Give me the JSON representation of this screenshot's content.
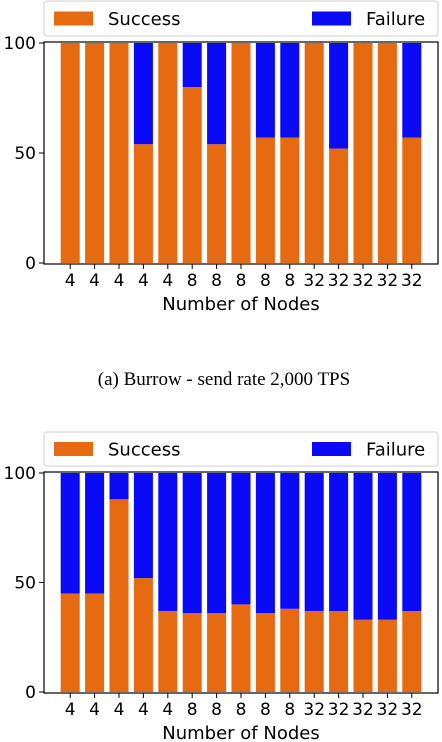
{
  "colors": {
    "success": "#E66A11",
    "failure": "#0A0AF5"
  },
  "legend": {
    "success_label": "Success",
    "failure_label": "Failure"
  },
  "chart_data": [
    {
      "type": "bar",
      "stacked": true,
      "xlabel": "Number of Nodes",
      "ylabel": "",
      "caption": "(a) Burrow - send rate 2,000 TPS",
      "ylim": [
        0,
        100
      ],
      "yticks": [
        0,
        50,
        100
      ],
      "categories": [
        "4",
        "4",
        "4",
        "4",
        "4",
        "8",
        "8",
        "8",
        "8",
        "8",
        "32",
        "32",
        "32",
        "32",
        "32"
      ],
      "series": [
        {
          "name": "Success",
          "values": [
            100,
            100,
            100,
            54,
            100,
            80,
            54,
            100,
            57,
            57,
            100,
            52,
            100,
            100,
            57
          ]
        },
        {
          "name": "Failure",
          "values": [
            0,
            0,
            0,
            46,
            0,
            20,
            46,
            0,
            43,
            43,
            0,
            48,
            0,
            0,
            43
          ]
        }
      ],
      "grid": false,
      "legend_position": "top"
    },
    {
      "type": "bar",
      "stacked": true,
      "xlabel": "Number of Nodes",
      "ylabel": "",
      "caption": "",
      "ylim": [
        0,
        100
      ],
      "yticks": [
        0,
        50,
        100
      ],
      "categories": [
        "4",
        "4",
        "4",
        "4",
        "4",
        "8",
        "8",
        "8",
        "8",
        "8",
        "32",
        "32",
        "32",
        "32",
        "32"
      ],
      "series": [
        {
          "name": "Success",
          "values": [
            45,
            45,
            88,
            52,
            37,
            36,
            36,
            40,
            36,
            38,
            37,
            37,
            33,
            33,
            37
          ]
        },
        {
          "name": "Failure",
          "values": [
            55,
            55,
            12,
            48,
            63,
            64,
            64,
            60,
            64,
            62,
            63,
            63,
            67,
            67,
            63
          ]
        }
      ],
      "grid": false,
      "legend_position": "top"
    }
  ]
}
